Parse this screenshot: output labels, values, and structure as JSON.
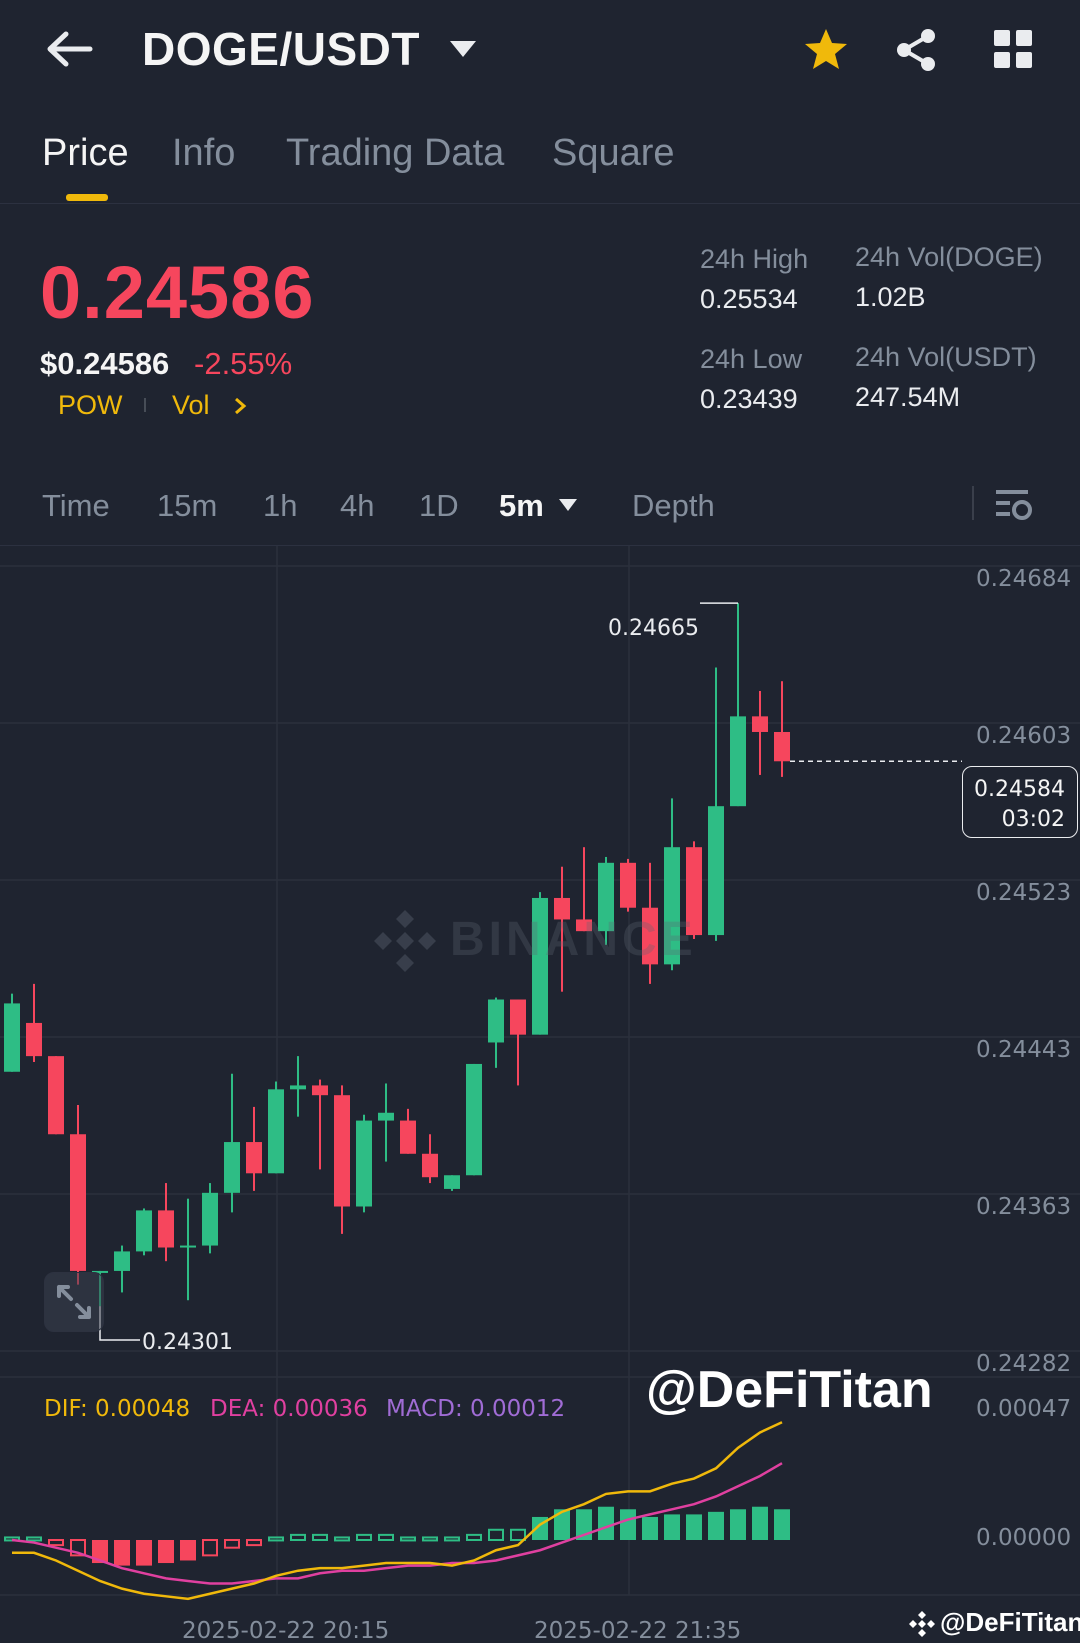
{
  "header": {
    "title": "DOGE/USDT",
    "icons": [
      "back-arrow-icon",
      "caret-down-icon",
      "star-icon",
      "share-icon",
      "grid-icon"
    ],
    "star_color": "#f0b90b"
  },
  "tabs": [
    {
      "label": "Price",
      "active": true
    },
    {
      "label": "Info",
      "active": false
    },
    {
      "label": "Trading Data",
      "active": false
    },
    {
      "label": "Square",
      "active": false
    }
  ],
  "ticker": {
    "last_price": "0.24586",
    "usd_price": "$0.24586",
    "change_pct": "-2.55%",
    "tag_pow": "POW",
    "tag_vol": "Vol",
    "price_color": "#f6465d"
  },
  "stats": {
    "high_label": "24h High",
    "high_value": "0.25534",
    "low_label": "24h Low",
    "low_value": "0.23439",
    "vol_base_label": "24h Vol(DOGE)",
    "vol_base_value": "1.02B",
    "vol_quote_label": "24h Vol(USDT)",
    "vol_quote_value": "247.54M"
  },
  "intervals": {
    "items": [
      "Time",
      "15m",
      "1h",
      "4h",
      "1D",
      "5m",
      "Depth"
    ],
    "active": "5m"
  },
  "chart_data": {
    "type": "candlestick",
    "interval": "5m",
    "y_ticks": [
      "0.24684",
      "0.24603",
      "0.24523",
      "0.24443",
      "0.24363",
      "0.24282"
    ],
    "ylim": [
      0.24268,
      0.24708
    ],
    "x_ticks": [
      "2025-02-22 20:15",
      "2025-02-22 21:35"
    ],
    "high_marker": "0.24665",
    "low_marker": "0.24301",
    "last_price": "0.24584",
    "countdown": "03:02",
    "up_color": "#2ebd85",
    "down_color": "#f6465d",
    "candles": [
      {
        "o": 0.24425,
        "h": 0.24465,
        "l": 0.24425,
        "c": 0.2446
      },
      {
        "o": 0.2445,
        "h": 0.2447,
        "l": 0.2443,
        "c": 0.24433
      },
      {
        "o": 0.24433,
        "h": 0.24433,
        "l": 0.24393,
        "c": 0.24393
      },
      {
        "o": 0.24393,
        "h": 0.24408,
        "l": 0.24316,
        "c": 0.24323
      },
      {
        "o": 0.24323,
        "h": 0.24323,
        "l": 0.24305,
        "c": 0.24323
      },
      {
        "o": 0.24323,
        "h": 0.24336,
        "l": 0.24312,
        "c": 0.24333
      },
      {
        "o": 0.24333,
        "h": 0.24355,
        "l": 0.24331,
        "c": 0.24354
      },
      {
        "o": 0.24354,
        "h": 0.24368,
        "l": 0.24328,
        "c": 0.24335
      },
      {
        "o": 0.24335,
        "h": 0.2436,
        "l": 0.24308,
        "c": 0.24336
      },
      {
        "o": 0.24336,
        "h": 0.24368,
        "l": 0.24332,
        "c": 0.24363
      },
      {
        "o": 0.24363,
        "h": 0.24424,
        "l": 0.24353,
        "c": 0.24389
      },
      {
        "o": 0.24389,
        "h": 0.24407,
        "l": 0.24364,
        "c": 0.24373
      },
      {
        "o": 0.24373,
        "h": 0.2442,
        "l": 0.24373,
        "c": 0.24416
      },
      {
        "o": 0.24416,
        "h": 0.24433,
        "l": 0.24402,
        "c": 0.24418
      },
      {
        "o": 0.24418,
        "h": 0.24421,
        "l": 0.24375,
        "c": 0.24413
      },
      {
        "o": 0.24413,
        "h": 0.24418,
        "l": 0.24342,
        "c": 0.24356
      },
      {
        "o": 0.24356,
        "h": 0.24403,
        "l": 0.24353,
        "c": 0.244
      },
      {
        "o": 0.244,
        "h": 0.24419,
        "l": 0.24379,
        "c": 0.24404
      },
      {
        "o": 0.244,
        "h": 0.24406,
        "l": 0.24383,
        "c": 0.24383
      },
      {
        "o": 0.24383,
        "h": 0.24393,
        "l": 0.24368,
        "c": 0.24371
      },
      {
        "o": 0.24365,
        "h": 0.24372,
        "l": 0.24364,
        "c": 0.24372
      },
      {
        "o": 0.24372,
        "h": 0.24429,
        "l": 0.24372,
        "c": 0.24429
      },
      {
        "o": 0.2444,
        "h": 0.24463,
        "l": 0.24427,
        "c": 0.24462
      },
      {
        "o": 0.24462,
        "h": 0.24462,
        "l": 0.24418,
        "c": 0.24444
      },
      {
        "o": 0.24444,
        "h": 0.24517,
        "l": 0.24444,
        "c": 0.24514
      },
      {
        "o": 0.24514,
        "h": 0.2453,
        "l": 0.24466,
        "c": 0.24503
      },
      {
        "o": 0.24503,
        "h": 0.2454,
        "l": 0.24497,
        "c": 0.24497
      },
      {
        "o": 0.24497,
        "h": 0.24535,
        "l": 0.2449,
        "c": 0.24532
      },
      {
        "o": 0.24532,
        "h": 0.24534,
        "l": 0.24507,
        "c": 0.24509
      },
      {
        "o": 0.24509,
        "h": 0.24532,
        "l": 0.2447,
        "c": 0.2448
      },
      {
        "o": 0.2448,
        "h": 0.24565,
        "l": 0.24477,
        "c": 0.2454
      },
      {
        "o": 0.2454,
        "h": 0.24543,
        "l": 0.24493,
        "c": 0.24495
      },
      {
        "o": 0.24495,
        "h": 0.24632,
        "l": 0.24492,
        "c": 0.24561
      },
      {
        "o": 0.24561,
        "h": 0.24665,
        "l": 0.24561,
        "c": 0.24607
      },
      {
        "o": 0.24607,
        "h": 0.2462,
        "l": 0.24577,
        "c": 0.24599
      },
      {
        "o": 0.24599,
        "h": 0.24625,
        "l": 0.24576,
        "c": 0.24584
      }
    ]
  },
  "macd": {
    "dif_label": "DIF: 0.00048",
    "dea_label": "DEA: 0.00036",
    "macd_label": "MACD: 0.00012",
    "dif_color": "#f0b90b",
    "dea_color": "#e040a0",
    "macd_color": "#a06cd5",
    "y_ticks": [
      "0.00047",
      "0.00000"
    ],
    "ylim": [
      -0.00025,
      0.0005
    ],
    "dif": [
      -5e-05,
      -5e-05,
      -8e-05,
      -0.00012,
      -0.00016,
      -0.00019,
      -0.00021,
      -0.00022,
      -0.00023,
      -0.00021,
      -0.00019,
      -0.00017,
      -0.00014,
      -0.00012,
      -0.00011,
      -0.00011,
      -0.0001,
      -9e-05,
      -9e-05,
      -9e-05,
      -0.0001,
      -8e-05,
      -4e-05,
      -2e-05,
      6e-05,
      0.00011,
      0.00014,
      0.00018,
      0.00019,
      0.00019,
      0.00022,
      0.00024,
      0.00028,
      0.00036,
      0.00042,
      0.00046
    ],
    "dea": [
      0.0,
      -1e-05,
      -3e-05,
      -5e-05,
      -8e-05,
      -0.00011,
      -0.00013,
      -0.00015,
      -0.00016,
      -0.00017,
      -0.00017,
      -0.00016,
      -0.00015,
      -0.00015,
      -0.00013,
      -0.00012,
      -0.00012,
      -0.00011,
      -0.0001,
      -0.0001,
      -9e-05,
      -9e-05,
      -8e-05,
      -6e-05,
      -4e-05,
      -1e-05,
      2e-05,
      5e-05,
      8e-05,
      0.0001,
      0.00012,
      0.00014,
      0.00017,
      0.00021,
      0.00025,
      0.0003
    ],
    "hist": [
      1e-05,
      1e-05,
      -2e-05,
      -6e-05,
      -9e-05,
      -0.0001,
      -0.0001,
      -9e-05,
      -8e-05,
      -6e-05,
      -3e-05,
      -2e-05,
      1e-05,
      2e-05,
      2e-05,
      1e-05,
      2e-05,
      2e-05,
      1e-05,
      1e-05,
      1e-05,
      2e-05,
      4e-05,
      4e-05,
      9e-05,
      0.00012,
      0.00012,
      0.00013,
      0.00012,
      9e-05,
      0.0001,
      0.0001,
      0.00011,
      0.00012,
      0.00013,
      0.00012
    ]
  },
  "watermark": {
    "text": "BINANCE"
  },
  "overlay": {
    "handle": "@DeFiTitan"
  },
  "footer": {
    "brand": "@DeFiTitan"
  }
}
